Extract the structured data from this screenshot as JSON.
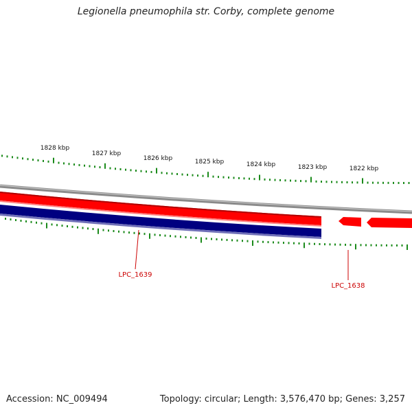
{
  "title": "Legionella pneumophila str. Corby, complete genome",
  "accession": "Accession: NC_009494",
  "summary": "Topology: circular; Length: 3,576,470 bp; Genes: 3,257",
  "scale": {
    "labels": [
      "1828 kbp",
      "1827 kbp",
      "1826 kbp",
      "1825 kbp",
      "1824 kbp",
      "1823 kbp",
      "1822 kbp"
    ]
  },
  "genes": [
    {
      "id": "LPC_1639",
      "strand": "both",
      "color_forward": "#ff0000",
      "color_reverse": "#000080"
    },
    {
      "id": "LPC_1638",
      "strand": "forward",
      "color_forward": "#ff0000"
    }
  ],
  "colors": {
    "backbone": "#8a8a8a",
    "forward": "#ff0000",
    "reverse": "#000080",
    "tick": "#1a8a1a",
    "gene_label": "#cc0000"
  }
}
